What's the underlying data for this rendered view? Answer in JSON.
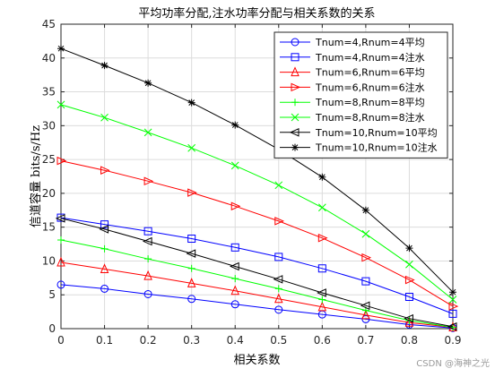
{
  "chart_data": {
    "type": "line",
    "title": "平均功率分配,注水功率分配与相关系数的关系",
    "xlabel": "相关系数",
    "ylabel": "信道容量 bits/s/Hz",
    "x": [
      0,
      0.1,
      0.2,
      0.3,
      0.4,
      0.5,
      0.6,
      0.7,
      0.8,
      0.9
    ],
    "xlim": [
      0,
      0.9
    ],
    "ylim": [
      0,
      45
    ],
    "xticks": [
      "0",
      "0.1",
      "0.2",
      "0.3",
      "0.4",
      "0.5",
      "0.6",
      "0.7",
      "0.8",
      "0.9"
    ],
    "yticks": [
      "0",
      "5",
      "10",
      "15",
      "20",
      "25",
      "30",
      "35",
      "40",
      "45"
    ],
    "grid": true,
    "legend_position": "top-right",
    "series": [
      {
        "name": "Tnum=4,Rnum=4平均",
        "color": "#0000ff",
        "marker": "circle",
        "values": [
          6.5,
          5.9,
          5.1,
          4.4,
          3.6,
          2.8,
          2.1,
          1.4,
          0.6,
          0.1
        ]
      },
      {
        "name": "Tnum=4,Rnum=4注水",
        "color": "#0000ff",
        "marker": "square",
        "values": [
          16.4,
          15.4,
          14.4,
          13.3,
          12.0,
          10.6,
          8.9,
          7.0,
          4.7,
          2.2
        ]
      },
      {
        "name": "Tnum=6,Rnum=6平均",
        "color": "#ff0000",
        "marker": "triangle-up",
        "values": [
          9.8,
          8.8,
          7.8,
          6.7,
          5.6,
          4.4,
          3.2,
          2.0,
          0.9,
          0.2
        ]
      },
      {
        "name": "Tnum=6,Rnum=6注水",
        "color": "#ff0000",
        "marker": "triangle-right",
        "values": [
          24.8,
          23.4,
          21.8,
          20.1,
          18.1,
          15.9,
          13.4,
          10.5,
          7.2,
          3.3
        ]
      },
      {
        "name": "Tnum=8,Rnum=8平均",
        "color": "#00ff00",
        "marker": "plus",
        "values": [
          13.1,
          11.8,
          10.3,
          8.9,
          7.4,
          5.9,
          4.3,
          2.7,
          1.2,
          0.2
        ]
      },
      {
        "name": "Tnum=8,Rnum=8注水",
        "color": "#00ff00",
        "marker": "x",
        "values": [
          33.1,
          31.2,
          29.0,
          26.7,
          24.1,
          21.2,
          17.9,
          14.0,
          9.5,
          4.3
        ]
      },
      {
        "name": "Tnum=10,Rnum=10平均",
        "color": "#000000",
        "marker": "triangle-left",
        "values": [
          16.3,
          14.7,
          12.9,
          11.1,
          9.2,
          7.3,
          5.3,
          3.4,
          1.5,
          0.3
        ]
      },
      {
        "name": "Tnum=10,Rnum=10注水",
        "color": "#000000",
        "marker": "asterisk",
        "values": [
          41.4,
          38.9,
          36.3,
          33.4,
          30.1,
          26.5,
          22.4,
          17.5,
          11.9,
          5.4
        ]
      }
    ]
  },
  "watermark": "CSDN @海神之光"
}
